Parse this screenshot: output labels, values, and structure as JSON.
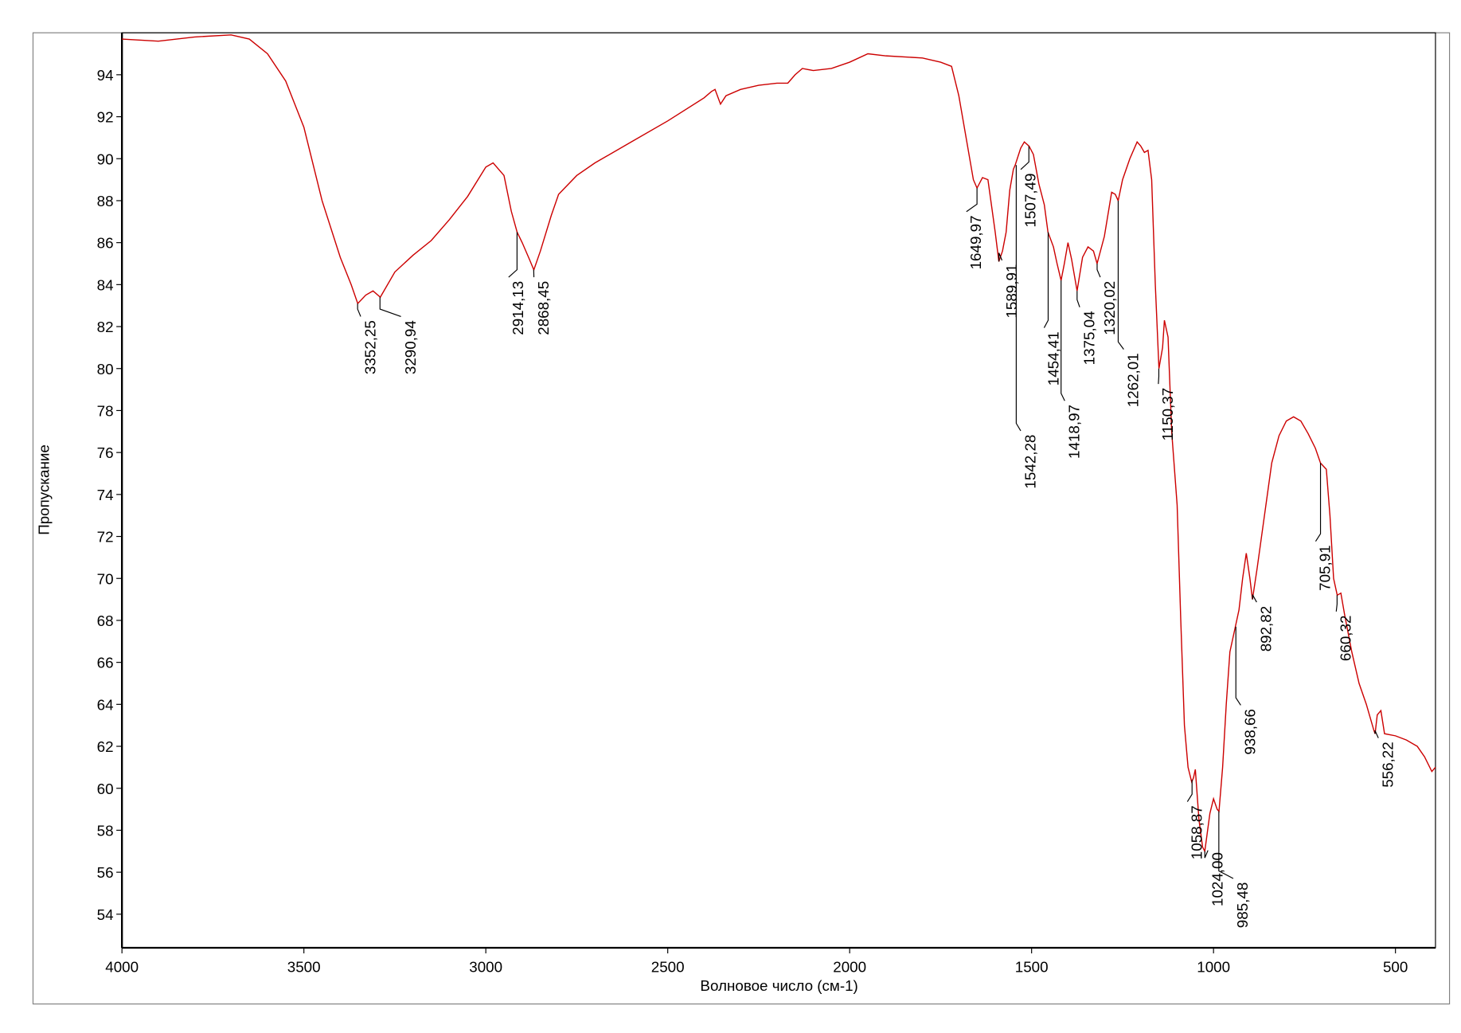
{
  "chart_data": {
    "type": "line",
    "x_label": "Волновое число (см-1)",
    "y_label": "Пропускание",
    "color": "#cc0000",
    "xlim": [
      4000,
      390
    ],
    "ylim": [
      52.4,
      96
    ],
    "xticks": [
      4000,
      3500,
      3000,
      2500,
      2000,
      1500,
      1000,
      500
    ],
    "yticks": [
      54,
      56,
      58,
      60,
      62,
      64,
      66,
      68,
      70,
      72,
      74,
      76,
      78,
      80,
      82,
      84,
      86,
      88,
      90,
      92,
      94
    ],
    "x": [
      4000,
      3900,
      3800,
      3700,
      3650,
      3600,
      3550,
      3500,
      3450,
      3400,
      3370,
      3352,
      3330,
      3310,
      3290,
      3250,
      3200,
      3150,
      3100,
      3050,
      3000,
      2980,
      2950,
      2930,
      2914,
      2900,
      2880,
      2868,
      2850,
      2820,
      2800,
      2750,
      2700,
      2600,
      2500,
      2400,
      2380,
      2370,
      2355,
      2340,
      2300,
      2250,
      2200,
      2170,
      2150,
      2130,
      2100,
      2050,
      2000,
      1950,
      1900,
      1800,
      1750,
      1720,
      1700,
      1680,
      1660,
      1650,
      1635,
      1620,
      1600,
      1590,
      1580,
      1570,
      1560,
      1550,
      1545,
      1530,
      1520,
      1507,
      1495,
      1480,
      1465,
      1455,
      1440,
      1430,
      1419,
      1410,
      1400,
      1390,
      1375,
      1360,
      1345,
      1330,
      1320,
      1300,
      1280,
      1270,
      1262,
      1250,
      1230,
      1210,
      1200,
      1190,
      1180,
      1170,
      1160,
      1150,
      1140,
      1135,
      1125,
      1115,
      1100,
      1090,
      1080,
      1070,
      1060,
      1055,
      1050,
      1040,
      1030,
      1024,
      1010,
      1000,
      990,
      985,
      975,
      965,
      955,
      940,
      930,
      920,
      910,
      900,
      893,
      880,
      860,
      840,
      820,
      800,
      780,
      760,
      740,
      720,
      706,
      690,
      680,
      670,
      660,
      650,
      640,
      620,
      600,
      580,
      560,
      556,
      550,
      540,
      530,
      500,
      470,
      440,
      420,
      400,
      390
    ],
    "values": [
      95.7,
      95.6,
      95.8,
      95.9,
      95.7,
      95.0,
      93.7,
      91.5,
      88.0,
      85.3,
      84.0,
      83.1,
      83.5,
      83.7,
      83.4,
      84.6,
      85.4,
      86.1,
      87.1,
      88.2,
      89.6,
      89.8,
      89.2,
      87.5,
      86.5,
      86.0,
      85.2,
      84.7,
      85.6,
      87.3,
      88.3,
      89.2,
      89.8,
      90.8,
      91.8,
      92.9,
      93.2,
      93.3,
      92.6,
      93.0,
      93.3,
      93.5,
      93.6,
      93.6,
      94.0,
      94.3,
      94.2,
      94.3,
      94.6,
      95.0,
      94.9,
      94.8,
      94.6,
      94.4,
      93.0,
      91.0,
      89.0,
      88.6,
      89.1,
      89.0,
      86.5,
      85.1,
      85.6,
      86.5,
      88.5,
      89.5,
      89.7,
      90.5,
      90.8,
      90.6,
      90.2,
      88.8,
      87.8,
      86.5,
      85.8,
      85.0,
      84.2,
      85.0,
      86.0,
      85.2,
      83.7,
      85.3,
      85.8,
      85.6,
      85.0,
      86.3,
      88.4,
      88.3,
      88.0,
      89.0,
      90.0,
      90.8,
      90.6,
      90.3,
      90.4,
      89.0,
      84.0,
      80.0,
      81.0,
      82.3,
      81.5,
      77.0,
      73.5,
      68.0,
      63.0,
      61.0,
      60.3,
      60.5,
      60.9,
      58.5,
      57.2,
      57.0,
      58.8,
      59.5,
      59.0,
      58.9,
      61.0,
      64.0,
      66.5,
      67.7,
      68.5,
      70.0,
      71.2,
      70.0,
      69.0,
      70.5,
      73.0,
      75.5,
      76.8,
      77.5,
      77.7,
      77.5,
      76.9,
      76.2,
      75.5,
      75.2,
      73.0,
      70.0,
      69.2,
      69.3,
      68.3,
      66.5,
      65.0,
      64.0,
      62.8,
      62.6,
      63.5,
      63.7,
      62.6,
      62.5,
      62.3,
      62.0,
      61.5,
      60.8,
      61.0
    ],
    "annotations": [
      {
        "x": 3352.25,
        "y": 83.1,
        "label": "3352,25"
      },
      {
        "x": 3290.94,
        "y": 83.4,
        "label": "3290,94"
      },
      {
        "x": 2914.13,
        "y": 86.5,
        "label": "2914,13"
      },
      {
        "x": 2868.45,
        "y": 84.7,
        "label": "2868,45"
      },
      {
        "x": 1649.97,
        "y": 88.6,
        "label": "1649,97"
      },
      {
        "x": 1589.91,
        "y": 85.1,
        "label": "1589,91"
      },
      {
        "x": 1542.28,
        "y": 89.7,
        "label": "1542,28"
      },
      {
        "x": 1507.49,
        "y": 90.6,
        "label": "1507,49"
      },
      {
        "x": 1454.41,
        "y": 86.5,
        "label": "1454,41"
      },
      {
        "x": 1418.97,
        "y": 84.2,
        "label": "1418,97"
      },
      {
        "x": 1375.04,
        "y": 83.7,
        "label": "1375,04"
      },
      {
        "x": 1320.02,
        "y": 85.0,
        "label": "1320,02"
      },
      {
        "x": 1262.01,
        "y": 88.0,
        "label": "1262,01"
      },
      {
        "x": 1150.37,
        "y": 80.0,
        "label": "1150,37"
      },
      {
        "x": 1058.87,
        "y": 60.4,
        "label": "1058,87"
      },
      {
        "x": 1024.0,
        "y": 57.0,
        "label": "1024,00"
      },
      {
        "x": 985.48,
        "y": 58.9,
        "label": "985,48"
      },
      {
        "x": 938.66,
        "y": 67.7,
        "label": "938,66"
      },
      {
        "x": 892.82,
        "y": 69.0,
        "label": "892,82"
      },
      {
        "x": 705.91,
        "y": 75.5,
        "label": "705,91"
      },
      {
        "x": 660.32,
        "y": 69.2,
        "label": "660,32"
      },
      {
        "x": 556.22,
        "y": 62.6,
        "label": "556,22"
      }
    ]
  }
}
